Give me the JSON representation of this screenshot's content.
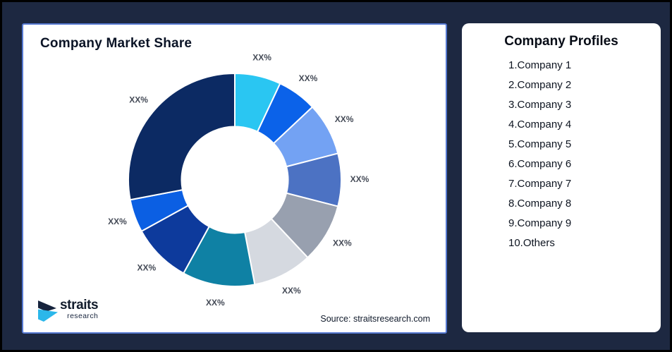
{
  "page": {
    "background_color": "#1d2841",
    "frame_border_color": "#000000"
  },
  "chart_card": {
    "title": "Company Market Share",
    "source": "Source: straitsresearch.com",
    "border_color": "#5578d0"
  },
  "logo": {
    "brand": "straits",
    "brand_sub": "research",
    "mark_navy": "#16233c",
    "mark_cyan": "#2bb7ea"
  },
  "chart_data": {
    "type": "pie",
    "subtype": "donut",
    "title": "Company Market Share",
    "start_angle_deg": 0,
    "clockwise": true,
    "donut_hole_ratio": 0.5,
    "gap_color": "#ffffff",
    "label_color": "#454b57",
    "slices": [
      {
        "label": "XX%",
        "estimated_percent": 7,
        "color": "#2ac6f2"
      },
      {
        "label": "XX%",
        "estimated_percent": 6,
        "color": "#0b62e9"
      },
      {
        "label": "XX%",
        "estimated_percent": 8,
        "color": "#73a2f3"
      },
      {
        "label": "XX%",
        "estimated_percent": 8,
        "color": "#4c72c3"
      },
      {
        "label": "XX%",
        "estimated_percent": 9,
        "color": "#98a0af"
      },
      {
        "label": "XX%",
        "estimated_percent": 9,
        "color": "#d5d9e0"
      },
      {
        "label": "XX%",
        "estimated_percent": 11,
        "color": "#0f81a4"
      },
      {
        "label": "XX%",
        "estimated_percent": 9,
        "color": "#0d3a9c"
      },
      {
        "label": "XX%",
        "estimated_percent": 5,
        "color": "#0b5fe3"
      },
      {
        "label": "XX%",
        "estimated_percent": 28,
        "color": "#0c2a63"
      }
    ]
  },
  "profiles": {
    "title": "Company Profiles",
    "items": [
      "1.Company 1",
      "2.Company 2",
      "3.Company 3",
      "4.Company 4",
      "5.Company 5",
      "6.Company 6",
      "7.Company 7",
      "8.Company 8",
      "9.Company 9",
      "10.Others"
    ]
  }
}
